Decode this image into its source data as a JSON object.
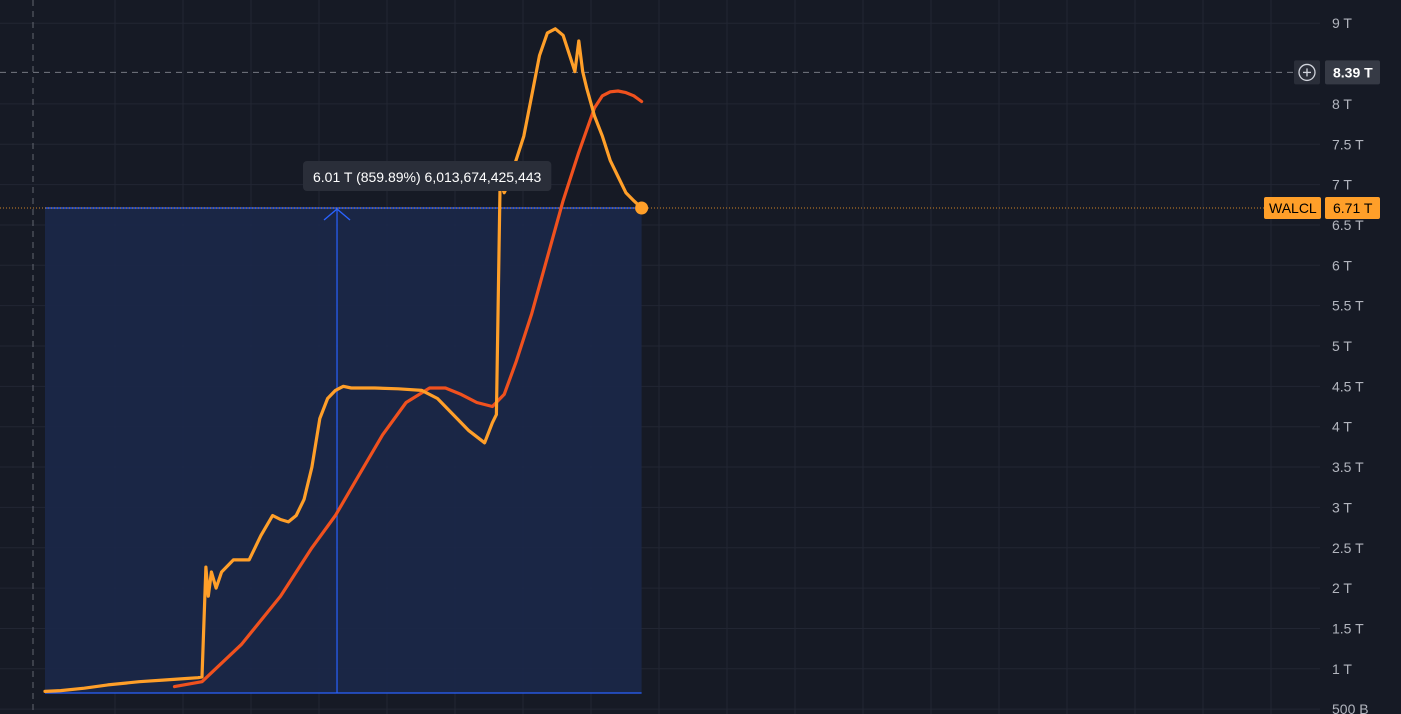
{
  "chart_data": {
    "type": "line",
    "title": "",
    "xlabel": "",
    "ylabel": "",
    "ylim": [
      0.45,
      9.1
    ],
    "y_unit": "T",
    "y_ticks": [
      {
        "value": 0.5,
        "label": "500 B"
      },
      {
        "value": 1,
        "label": "1 T"
      },
      {
        "value": 1.5,
        "label": "1.5 T"
      },
      {
        "value": 2,
        "label": "2 T"
      },
      {
        "value": 2.5,
        "label": "2.5 T"
      },
      {
        "value": 3,
        "label": "3 T"
      },
      {
        "value": 3.5,
        "label": "3.5 T"
      },
      {
        "value": 4,
        "label": "4 T"
      },
      {
        "value": 4.5,
        "label": "4.5 T"
      },
      {
        "value": 5,
        "label": "5 T"
      },
      {
        "value": 5.5,
        "label": "5.5 T"
      },
      {
        "value": 6,
        "label": "6 T"
      },
      {
        "value": 6.5,
        "label": "6.5 T"
      },
      {
        "value": 7,
        "label": "7 T"
      },
      {
        "value": 7.5,
        "label": "7.5 T"
      },
      {
        "value": 8,
        "label": "8 T"
      },
      {
        "value": 9,
        "label": "9 T"
      }
    ],
    "grid": true,
    "xlim": [
      0,
      1
    ],
    "series": [
      {
        "name": "WALCL",
        "color": "#ff9f29",
        "x": [
          0.0,
          0.02,
          0.05,
          0.08,
          0.12,
          0.15,
          0.18,
          0.195,
          0.2,
          0.205,
          0.208,
          0.212,
          0.218,
          0.225,
          0.24,
          0.26,
          0.275,
          0.29,
          0.3,
          0.31,
          0.32,
          0.33,
          0.34,
          0.35,
          0.36,
          0.37,
          0.38,
          0.39,
          0.4,
          0.42,
          0.45,
          0.48,
          0.5,
          0.52,
          0.54,
          0.56,
          0.57,
          0.575,
          0.58,
          0.583,
          0.585,
          0.59,
          0.6,
          0.61,
          0.62,
          0.63,
          0.64,
          0.65,
          0.66,
          0.67,
          0.675,
          0.68,
          0.685,
          0.69,
          0.7,
          0.71,
          0.72,
          0.73,
          0.74,
          0.75,
          0.76
        ],
        "values": [
          0.72,
          0.73,
          0.76,
          0.8,
          0.84,
          0.86,
          0.88,
          0.89,
          0.9,
          2.26,
          1.9,
          2.2,
          2.0,
          2.2,
          2.35,
          2.35,
          2.65,
          2.9,
          2.85,
          2.82,
          2.9,
          3.1,
          3.5,
          4.1,
          4.35,
          4.45,
          4.5,
          4.48,
          4.48,
          4.48,
          4.47,
          4.45,
          4.35,
          4.15,
          3.95,
          3.8,
          4.05,
          4.15,
          7.18,
          6.95,
          6.9,
          7.0,
          7.3,
          7.6,
          8.1,
          8.6,
          8.88,
          8.93,
          8.85,
          8.55,
          8.4,
          8.78,
          8.4,
          8.2,
          7.85,
          7.6,
          7.3,
          7.1,
          6.9,
          6.8,
          6.71
        ]
      },
      {
        "name": "",
        "color": "#f0511e",
        "x": [
          0.165,
          0.2,
          0.25,
          0.3,
          0.34,
          0.37,
          0.4,
          0.43,
          0.46,
          0.49,
          0.51,
          0.53,
          0.55,
          0.57,
          0.585,
          0.6,
          0.62,
          0.64,
          0.66,
          0.68,
          0.7,
          0.71,
          0.72,
          0.73,
          0.74,
          0.75,
          0.76
        ],
        "values": [
          0.78,
          0.84,
          1.3,
          1.9,
          2.5,
          2.9,
          3.4,
          3.9,
          4.3,
          4.48,
          4.48,
          4.4,
          4.3,
          4.25,
          4.4,
          4.8,
          5.4,
          6.1,
          6.8,
          7.4,
          7.95,
          8.1,
          8.15,
          8.16,
          8.14,
          8.1,
          8.03
        ]
      }
    ],
    "measure": {
      "label": "6.01 T (859.89%) 6,013,674,425,443",
      "from_value": 0.7,
      "to_value": 6.71,
      "x_start": 0.0,
      "x_end": 0.76,
      "x_arrow": 0.372
    },
    "last_price": {
      "label": "WALCL",
      "value": 6.71,
      "value_label": "6.71 T",
      "color": "#ff9f29"
    },
    "crosshair": {
      "value": 8.39,
      "value_label": "8.39 T"
    },
    "colors": {
      "background": "#161a25",
      "grid": "#222633",
      "measure_fill": "#1b2748",
      "measure_line": "#2962ff",
      "axis_text": "#b2b5be"
    }
  }
}
